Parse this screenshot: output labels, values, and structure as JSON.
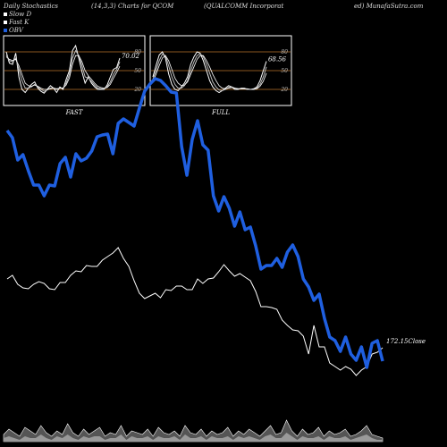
{
  "header": {
    "left": "Daily Stochastics",
    "mid": "(14,3,3) Charts for QCOM",
    "company": "(QUALCOMM Incorporat",
    "right": "ed) MunafaSutra.com"
  },
  "legend": [
    {
      "label": "Slow  D",
      "color": "#ffffff"
    },
    {
      "label": "Fast K",
      "color": "#ffffff"
    },
    {
      "label": "OBV",
      "color": "#1f5fe0"
    }
  ],
  "chart_data": [
    {
      "type": "line",
      "label": "FAST",
      "ylim": [
        0,
        100
      ],
      "yticks": [
        80,
        50,
        20
      ],
      "last_value_label": "70.02",
      "series": [
        {
          "values": [
            80,
            62,
            60,
            78,
            40,
            20,
            15,
            22,
            28,
            32,
            22,
            17,
            14,
            20,
            26,
            22,
            15,
            24,
            20,
            36,
            50,
            82,
            90,
            70,
            48,
            30,
            40,
            30,
            24,
            20,
            20,
            20,
            27,
            40,
            52,
            55,
            70
          ]
        },
        {
          "values": [
            75,
            66,
            64,
            70,
            52,
            34,
            22,
            22,
            24,
            28,
            24,
            20,
            17,
            19,
            22,
            22,
            20,
            22,
            22,
            30,
            44,
            70,
            82,
            74,
            58,
            40,
            38,
            33,
            27,
            22,
            21,
            21,
            24,
            32,
            44,
            52,
            64
          ]
        },
        {
          "values": [
            72,
            68,
            66,
            68,
            58,
            44,
            30,
            26,
            25,
            27,
            25,
            22,
            20,
            20,
            21,
            22,
            21,
            22,
            22,
            27,
            38,
            60,
            74,
            74,
            64,
            50,
            42,
            36,
            30,
            25,
            23,
            22,
            23,
            28,
            38,
            47,
            57
          ]
        }
      ]
    },
    {
      "type": "line",
      "label": "FULL",
      "ylim": [
        0,
        100
      ],
      "yticks": [
        80,
        50,
        20
      ],
      "last_value_label": "68.56",
      "series": [
        {
          "values": [
            40,
            58,
            75,
            80,
            70,
            45,
            28,
            20,
            18,
            24,
            30,
            40,
            60,
            72,
            80,
            78,
            66,
            50,
            34,
            24,
            18,
            15,
            18,
            22,
            26,
            24,
            20,
            20,
            22,
            22,
            20,
            20,
            21,
            24,
            34,
            50,
            65
          ]
        },
        {
          "values": [
            36,
            50,
            66,
            76,
            74,
            58,
            40,
            28,
            22,
            22,
            26,
            34,
            50,
            64,
            74,
            77,
            72,
            60,
            46,
            32,
            24,
            19,
            18,
            20,
            23,
            24,
            22,
            21,
            21,
            21,
            20,
            20,
            20,
            22,
            28,
            40,
            56
          ]
        },
        {
          "values": [
            32,
            44,
            58,
            70,
            74,
            66,
            52,
            38,
            30,
            26,
            27,
            32,
            44,
            56,
            68,
            74,
            74,
            66,
            56,
            44,
            34,
            26,
            22,
            21,
            22,
            23,
            22,
            21,
            21,
            21,
            21,
            20,
            20,
            21,
            25,
            33,
            46
          ]
        }
      ]
    },
    {
      "type": "line",
      "series": [
        {
          "name": "OBV",
          "values": [
            140,
            148,
            173,
            167,
            185,
            201,
            201,
            213,
            201,
            202,
            177,
            170,
            192,
            166,
            174,
            171,
            163,
            147,
            145,
            144,
            166,
            132,
            127,
            131,
            135,
            115,
            96,
            88,
            82,
            84,
            90,
            97,
            98,
            158,
            190,
            150,
            129,
            156,
            162,
            213,
            230,
            214,
            227,
            247,
            231,
            251,
            248,
            269,
            295,
            291,
            291,
            283,
            293,
            276,
            268,
            281,
            306,
            315,
            330,
            323,
            350,
            371,
            375,
            387,
            371,
            390,
            397,
            382,
            405,
            378,
            375,
            398
          ]
        },
        {
          "name": "Close",
          "values": [
            306,
            302,
            312,
            316,
            317,
            312,
            309,
            311,
            317,
            318,
            310,
            310,
            302,
            297,
            298,
            291,
            292,
            292,
            285,
            281,
            277,
            271,
            283,
            292,
            308,
            322,
            328,
            325,
            322,
            327,
            318,
            319,
            314,
            314,
            318,
            318,
            306,
            311,
            306,
            305,
            298,
            290,
            297,
            303,
            300,
            304,
            308,
            320,
            337,
            337,
            338,
            340,
            352,
            358,
            363,
            364,
            370,
            390,
            358,
            382,
            382,
            400,
            404,
            408,
            404,
            407,
            414,
            408,
            404,
            390,
            388,
            383
          ],
          "last_value_label": "172.15Close"
        }
      ]
    },
    {
      "type": "area",
      "series": [
        {
          "values": [
            4,
            7,
            5,
            3,
            8,
            6,
            4,
            9,
            5,
            3,
            6,
            4,
            10,
            5,
            3,
            7,
            4,
            6,
            8,
            3,
            5,
            4,
            9,
            3,
            6,
            5,
            4,
            7,
            3,
            8,
            5,
            4,
            6,
            3,
            9,
            5,
            4,
            7,
            3,
            6,
            4,
            5,
            8,
            3,
            6,
            4,
            7,
            5,
            3,
            6,
            9,
            4,
            5,
            12,
            6,
            3,
            7,
            4,
            5,
            8,
            3,
            6,
            4,
            5,
            7,
            3,
            4,
            6,
            9,
            4,
            3,
            2
          ]
        },
        {
          "values": [
            2,
            3,
            2,
            1,
            3,
            2,
            2,
            4,
            2,
            1,
            3,
            2,
            4,
            2,
            1,
            3,
            2,
            3,
            3,
            1,
            2,
            2,
            4,
            1,
            3,
            2,
            2,
            3,
            1,
            3,
            2,
            2,
            3,
            1,
            4,
            2,
            2,
            3,
            1,
            3,
            2,
            2,
            3,
            1,
            3,
            2,
            3,
            2,
            1,
            3,
            4,
            2,
            2,
            5,
            3,
            1,
            3,
            2,
            2,
            3,
            1,
            3,
            2,
            2,
            3,
            1,
            2,
            3,
            4,
            2,
            1,
            1
          ]
        }
      ]
    }
  ]
}
